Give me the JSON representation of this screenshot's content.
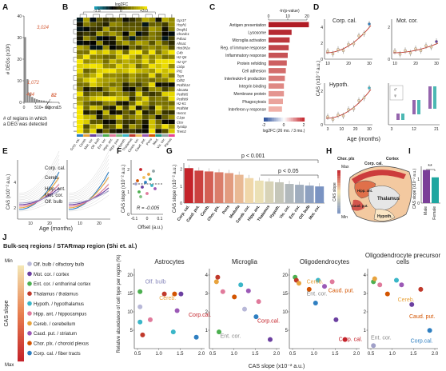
{
  "panel_labels": [
    "A",
    "B",
    "C",
    "D",
    "E",
    "F",
    "G",
    "H",
    "I",
    "J"
  ],
  "colors": {
    "gray_bar": "#8a8a8a",
    "highlight_orange": "#d55e3a",
    "heat_low": "#1a9fb8",
    "heat_mid": "#000000",
    "heat_high": "#f5e500",
    "bar_red": "#c4232a",
    "bar_pale": "#f4e6b4",
    "bar_blue": "#7a93c2",
    "male": "#7b3f98",
    "female": "#1fa6a0"
  },
  "panelA": {
    "chart_data": {
      "type": "bar",
      "xlabel": "# of regions in which a DEG was detected",
      "ylabel": "# DEGs (x10²)",
      "values": [
        30.24,
        10.72,
        4.34,
        2.5,
        1.8,
        1.4,
        1.1,
        0.9,
        0.82,
        0.6,
        0.45,
        0.3,
        0.2,
        0.12,
        0.08
      ],
      "ylim": [
        0,
        40
      ],
      "yticks": [
        "0",
        "10",
        "20",
        "30",
        "40"
      ],
      "xticks": [
        "0",
        "5",
        "10",
        "15"
      ],
      "annotations": [
        "3,024",
        "1,072",
        "434",
        "82",
        "10+ regions"
      ]
    }
  },
  "panelB": {
    "legend_title": "log2FC",
    "legend_ticks": [
      "-1.5",
      "0",
      "+3.0"
    ],
    "genes": [
      "Gpr17",
      "Hsph1",
      "Dnajb1",
      "Chordc1",
      "P4ha1",
      "Ahsa1",
      "Hist3h2a",
      "C4b",
      "H2-Q6",
      "H2-Q7",
      "Cirbp",
      "Pit1",
      "Tspn",
      "Cd52",
      "Pcdhb14",
      "Abca8a",
      "Pcdhb5",
      "Pcdhb9",
      "H2-K1",
      "Pcdhb8",
      "Hvcn1",
      "C1qa",
      "Ctss",
      "Tyrobp",
      "Trem2"
    ],
    "regions": [
      "Corp. cal.",
      "Cereb.",
      "Mot. cor.",
      "Olf. bulb",
      "Ent. cor.",
      "Hipp. ant.",
      "Hipp. pos.",
      "Hypoth.",
      "Thalamus",
      "Cereb. cor.",
      "Caud. put.",
      "Pons",
      "Med.",
      "Vis. cor.",
      "Plexus"
    ],
    "region_colors": [
      "#2f7fc1",
      "#e8a33d",
      "#6b3fa0",
      "#a0a0c8",
      "#4caf50",
      "#e07a9b",
      "#7fbf7f",
      "#3ab6c8",
      "#c0392b",
      "#f0c05a",
      "#9b59b6",
      "#d35400",
      "#1f9e89",
      "#95a5a6",
      "#e84393"
    ]
  },
  "panelC": {
    "axis_title": "-ln(p-value)",
    "axis_ticks": [
      "0",
      "10",
      "20"
    ],
    "legend_title": "log2FC (26 mo. / 3 mo.)",
    "legend_ticks": [
      "-2",
      "0",
      "2"
    ],
    "chart_data": {
      "type": "bar",
      "categories": [
        "Antigen presentation",
        "Lysosome",
        "Microglia activation",
        "Reg. of immune response",
        "Inflammatory response",
        "Protein refolding",
        "Cell adhesion",
        "Interleukin-6 production",
        "Integrin binding",
        "Membrane protein",
        "Phagocytosis",
        "Interferon-γ response"
      ],
      "values": [
        21,
        12,
        11,
        10.5,
        10,
        9.5,
        9,
        8.5,
        8,
        8,
        7.5,
        7
      ],
      "xlim": [
        0,
        20
      ]
    }
  },
  "panelD": {
    "ylabel": "CAS (x10⁻² a.u.)",
    "xlabel": "Age (months)",
    "subplots": [
      {
        "title": "Corp. cal.",
        "xticks": [
          "10",
          "20",
          "30"
        ],
        "yticks": [
          "0",
          "2",
          "4"
        ]
      },
      {
        "title": "Mot. cor.",
        "xticks": [
          "10",
          "20",
          "30"
        ],
        "yticks": [
          "0",
          "2"
        ]
      },
      {
        "title": "Hypoth.",
        "xticks": [
          "3",
          "10",
          "20",
          "30"
        ],
        "yticks": [
          "0",
          "2"
        ]
      },
      {
        "title": "",
        "xticks": [
          "3",
          "12",
          "21"
        ],
        "yticks": []
      }
    ],
    "sex_legend": [
      "♂",
      "♀"
    ]
  },
  "panelE": {
    "ylabel": "CAS (x10⁻² a.u.)",
    "xlabel": "Age (months)",
    "xticks": [
      "10",
      "20"
    ],
    "yticks": [
      "2",
      "4"
    ],
    "series_labels": [
      "Corp. cal.",
      "Cereb.",
      "Hipp. ant.",
      "Mot. cor.",
      "Olf. bulb"
    ],
    "series_colors": [
      "#2f7fc1",
      "#e8a33d",
      "#e07a9b",
      "#6b3fa0",
      "#a0a0c8"
    ]
  },
  "panelF": {
    "ylabel": "CAS slope (x10⁻² a.u.)",
    "xlabel": "Offset (a.u.)",
    "xticks": [
      "-0.1",
      "0",
      "0.1"
    ],
    "yticks": [
      "0",
      "1",
      "2"
    ],
    "annotation": "R = -0.005"
  },
  "panelG": {
    "ylabel": "CAS slope (x10⁻² a.u.)",
    "sig1": "p < 0.001",
    "sig2": "p < 0.05",
    "yticks": [
      "0",
      "1",
      "2"
    ],
    "chart_data": {
      "type": "bar",
      "categories": [
        "Corp. cal.",
        "Caud. put.",
        "Cereb.",
        "Chor. plx.",
        "Pons",
        "Medulla",
        "Cereb. cor.",
        "Hipp. ant.",
        "Thalamus",
        "Hypoth.",
        "Vis. cor.",
        "Ent. cor.",
        "Olf. bulb",
        "Mot. cor."
      ],
      "values": [
        2.1,
        1.95,
        1.9,
        1.85,
        1.8,
        1.7,
        1.5,
        1.35,
        1.3,
        1.25,
        1.15,
        1.1,
        1.05,
        1.0
      ],
      "ylim": [
        0,
        2.4
      ]
    }
  },
  "panelH": {
    "labels": [
      "Corp. cal.",
      "Cortex",
      "Chor. plx",
      "Hipp. ant.",
      "Thalamus",
      "Hypoth.",
      "Caud. put."
    ],
    "scale_title": "CAS slope",
    "scale_min": "Min",
    "scale_max": "Max"
  },
  "panelI": {
    "ylabel": "CAS slope (x10⁻² a.u.)",
    "sig": "**",
    "categories": [
      "Male",
      "Female"
    ],
    "values": [
      1.35,
      1.05
    ],
    "yticks": [
      "0",
      "1"
    ]
  },
  "panelJ": {
    "heading": "Bulk-seq regions / STARmap region (Shi et. al.)",
    "scale_title": "CAS slope",
    "scale_min": "Min",
    "scale_max": "Max",
    "legend": [
      {
        "label": "Olf. bulb / olfactory bulb",
        "color": "#b8b8d8"
      },
      {
        "label": "Mot. cor. / cortex",
        "color": "#6b3fa0"
      },
      {
        "label": "Ent. cor. / enthorinal cortex",
        "color": "#4caf50"
      },
      {
        "label": "Thalamus / thalamus",
        "color": "#c0392b"
      },
      {
        "label": "Hypoth. / hypothalamus",
        "color": "#3ab6c8"
      },
      {
        "label": "Hipp. ant. / hippocampus",
        "color": "#e07a9b"
      },
      {
        "label": "Cereb. / cerebellum",
        "color": "#e8a33d"
      },
      {
        "label": "Caud. put. / striatum",
        "color": "#9b59b6"
      },
      {
        "label": "Chor. plx. / choroid plexus",
        "color": "#d35400"
      },
      {
        "label": "Corp. cal. / fiber tracts",
        "color": "#2f7fc1"
      }
    ],
    "ylabel": "Relative abundance of cell type per region (%)",
    "xlabel": "CAS slope (x10⁻² a.u.)",
    "xticks": [
      "0.5",
      "1.0",
      "1.5",
      "2.0"
    ],
    "subplots": [
      {
        "title": "Astrocytes",
        "yticks": [
          "5",
          "10",
          "15",
          "20"
        ],
        "labels": [
          "Cereb.",
          "Olf. bulb",
          "Corp.cal."
        ]
      },
      {
        "title": "Microglia",
        "yticks": [
          "1",
          "2",
          "3",
          "4"
        ],
        "labels": [
          "Ent. cor.",
          "Corp.cal."
        ]
      },
      {
        "title": "Oligodendrocytes",
        "yticks": [
          "5",
          "10",
          "15",
          "20"
        ],
        "labels": [
          "Corp. cal.",
          "Ent. cor.",
          "Caud. put.",
          "Cereb."
        ]
      },
      {
        "title": "Oligodendrocyte precursor cells",
        "yticks": [
          "1",
          "2",
          "3",
          "4"
        ],
        "labels": [
          "Ent. cor.",
          "Corp.cal.",
          "Caud. put.",
          "Cereb."
        ]
      }
    ]
  }
}
